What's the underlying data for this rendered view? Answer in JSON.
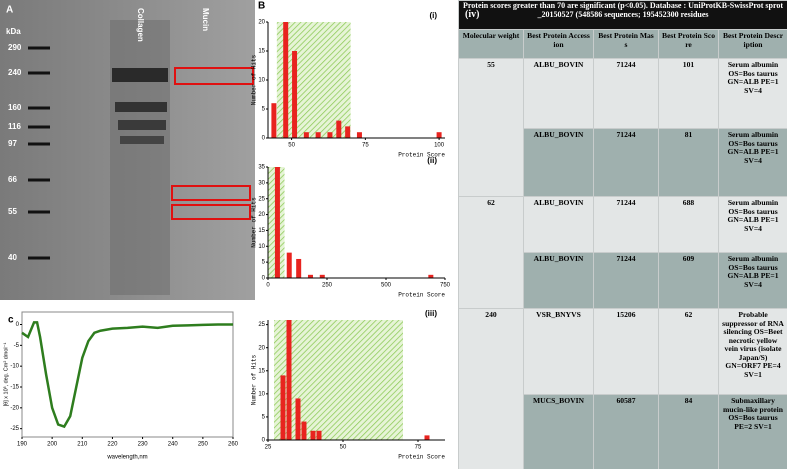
{
  "panels": {
    "gel": {
      "label": "A",
      "unit": "kDa",
      "lanes": [
        "Collagen",
        "Mucin"
      ],
      "markers": [
        290,
        240,
        160,
        116,
        97,
        66,
        55,
        40
      ]
    },
    "histograms_label": "B",
    "cd_label": "c"
  },
  "chart_data": [
    {
      "type": "bar",
      "label": "(i)",
      "x_label": "Protein Score",
      "y_label": "Number of Hits",
      "x": [
        44,
        48,
        51,
        55,
        59,
        63,
        66,
        69,
        73,
        100
      ],
      "values": [
        6,
        20,
        15,
        1,
        1,
        1,
        3,
        2,
        1,
        1
      ],
      "color": "#e8231f",
      "xlim": [
        42,
        102
      ],
      "xticks": [
        50,
        75,
        100
      ],
      "ylim": [
        0,
        20
      ],
      "yticks": [
        0,
        5,
        10,
        15,
        20
      ],
      "shaded_range": [
        45,
        70
      ]
    },
    {
      "type": "bar",
      "label": "(ii)",
      "x_label": "Protein Score",
      "y_label": "Number of Hits",
      "x": [
        40,
        90,
        130,
        180,
        230,
        690
      ],
      "values": [
        35,
        8,
        6,
        1,
        1,
        1
      ],
      "color": "#e8231f",
      "xlim": [
        0,
        750
      ],
      "xticks": [
        0,
        250,
        500,
        750
      ],
      "ylim": [
        0,
        35
      ],
      "yticks": [
        0,
        5,
        10,
        15,
        20,
        25,
        30,
        35
      ],
      "shaded_range": [
        0,
        70
      ]
    },
    {
      "type": "bar",
      "label": "(iii)",
      "x_label": "Protein Score",
      "y_label": "Number of Hits",
      "x": [
        30,
        32,
        35,
        37,
        40,
        42,
        78
      ],
      "values": [
        14,
        26,
        9,
        4,
        2,
        2,
        1
      ],
      "color": "#e8231f",
      "xlim": [
        25,
        84
      ],
      "xticks": [
        25,
        50,
        75
      ],
      "ylim": [
        0,
        26
      ],
      "yticks": [
        0,
        5,
        10,
        15,
        20,
        25
      ],
      "shaded_range": [
        27,
        70
      ]
    },
    {
      "type": "line",
      "x_label": "wavelength,nm",
      "y_label": "[θ] x 10³, deg. Cm² dmol⁻¹",
      "x": [
        190,
        192,
        194,
        195,
        196,
        198,
        200,
        202,
        204,
        206,
        208,
        210,
        212,
        214,
        216,
        220,
        225,
        230,
        235,
        240,
        245,
        250,
        255,
        260
      ],
      "values": [
        -2,
        -3,
        0.5,
        0.5,
        -3,
        -12,
        -20,
        -24,
        -24.5,
        -22,
        -15,
        -8,
        -4,
        -2,
        -1.5,
        -1,
        -0.8,
        -0.5,
        -0.8,
        -0.3,
        -0.2,
        -0.1,
        0,
        0
      ],
      "color": "#2e7d1e",
      "xlim": [
        190,
        260
      ],
      "xticks": [
        190,
        200,
        210,
        220,
        230,
        240,
        250,
        260
      ],
      "ylim": [
        -27,
        3
      ],
      "yticks": [
        0,
        -5,
        -10,
        -15,
        -20,
        -25
      ]
    }
  ],
  "table": {
    "label": "(iv)",
    "caption": "Protein scores greater than 70 are significant (p<0.05). Database : UniProtKB-SwissProt sprot_20150527 (548586 sequences; 195452300 residues",
    "header": [
      "Molecular weight",
      "Best Protein Accession",
      "Best Protein Mass",
      "Best Protein Score",
      "Best Protein Description"
    ],
    "groups": [
      {
        "mw": 55,
        "rows": [
          [
            "ALBU_BOVIN",
            71244,
            101,
            "Serum albumin OS=Bos taurus GN=ALB PE=1 SV=4"
          ],
          [
            "ALBU_BOVIN",
            71244,
            81,
            "Serum albumin OS=Bos taurus GN=ALB PE=1 SV=4"
          ]
        ]
      },
      {
        "mw": 62,
        "rows": [
          [
            "ALBU_BOVIN",
            71244,
            688,
            "Serum albumin OS=Bos taurus GN=ALB PE=1 SV=4"
          ],
          [
            "ALBU_BOVIN",
            71244,
            609,
            "Serum albumin OS=Bos taurus GN=ALB PE=1 SV=4"
          ]
        ]
      },
      {
        "mw": 240,
        "rows": [
          [
            "VSR_BNYVS",
            15206,
            62,
            "Probable suppressor of RNA silencing OS=Beet necrotic yellow vein virus (isolate Japan/S) GN=ORF7 PE=4 SV=1"
          ],
          [
            "MUCS_BOVIN",
            60587,
            84,
            "Submaxillary mucin-like protein OS=Bos taurus PE=2 SV=1"
          ]
        ]
      }
    ]
  }
}
